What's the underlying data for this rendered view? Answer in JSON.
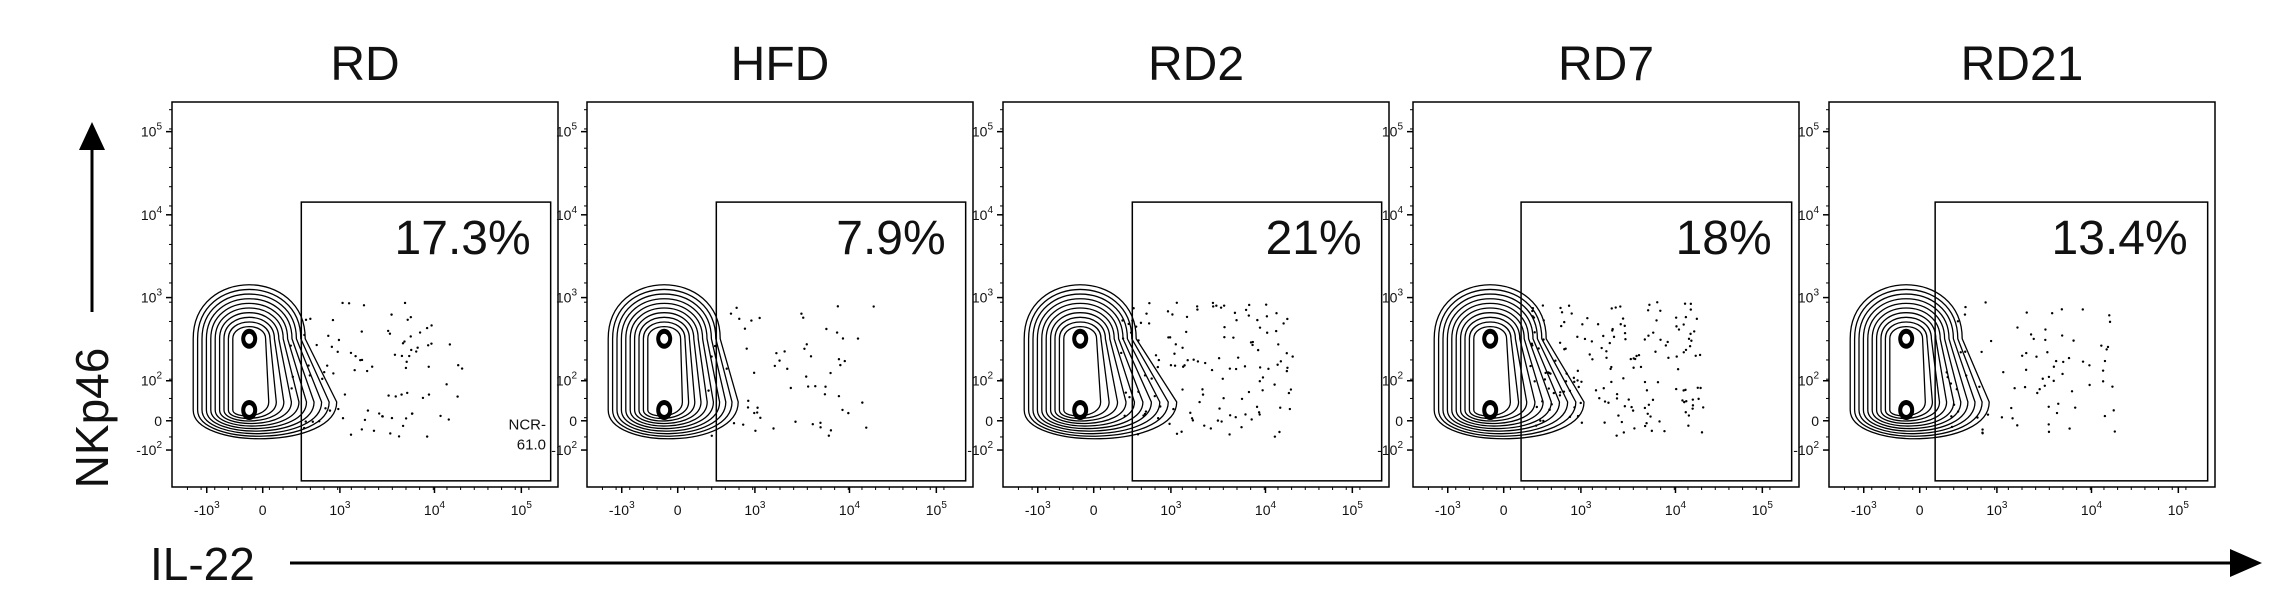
{
  "chart_data": {
    "type": "scatter",
    "subtype": "flow-cytometry-contour",
    "xlabel": "IL-22",
    "ylabel": "NKp46",
    "x_scale": "biexponential",
    "y_scale": "biexponential",
    "x_ticks": [
      "-10",
      "0",
      "10",
      "10",
      "10"
    ],
    "x_tick_exponents": [
      "3",
      "",
      "3",
      "4",
      "5"
    ],
    "y_ticks": [
      "10",
      "10",
      "10",
      "10",
      "0",
      "-10"
    ],
    "y_tick_exponents": [
      "5",
      "4",
      "3",
      "2",
      "",
      "2"
    ],
    "panels": [
      {
        "title": "RD",
        "gate_percent": "17.3%",
        "corner_label": [
          "NCR-",
          "61.0"
        ]
      },
      {
        "title": "HFD",
        "gate_percent": "7.9%",
        "corner_label": []
      },
      {
        "title": "RD2",
        "gate_percent": "21%",
        "corner_label": []
      },
      {
        "title": "RD7",
        "gate_percent": "18%",
        "corner_label": []
      },
      {
        "title": "RD21",
        "gate_percent": "13.4%",
        "corner_label": []
      }
    ]
  }
}
